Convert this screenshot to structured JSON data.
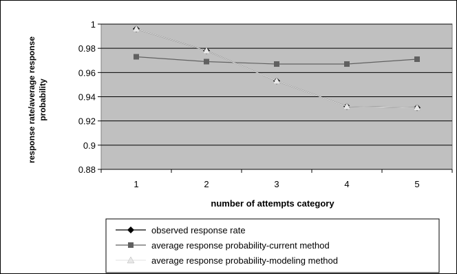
{
  "chart_data": {
    "type": "line",
    "title": "",
    "xlabel": "number of attempts category",
    "ylabel": "response rate/average response probability",
    "categories": [
      "1",
      "2",
      "3",
      "4",
      "5"
    ],
    "ylim": [
      0.88,
      1
    ],
    "y_ticks": [
      "0.88",
      "0.9",
      "0.92",
      "0.94",
      "0.96",
      "0.98",
      "1"
    ],
    "grid": true,
    "plot_background": "#c0c0c0",
    "legend_position": "bottom",
    "series": [
      {
        "name": "observed response rate",
        "values": [
          0.996,
          0.978,
          0.953,
          0.932,
          0.931
        ],
        "color": "#000000",
        "marker": "diamond"
      },
      {
        "name": "average response probability-current method",
        "values": [
          0.973,
          0.969,
          0.967,
          0.967,
          0.971
        ],
        "color": "#606060",
        "marker": "square"
      },
      {
        "name": "average response probability-modeling method",
        "values": [
          0.996,
          0.978,
          0.953,
          0.932,
          0.931
        ],
        "color": "#e8e8e8",
        "marker": "triangle"
      }
    ]
  }
}
